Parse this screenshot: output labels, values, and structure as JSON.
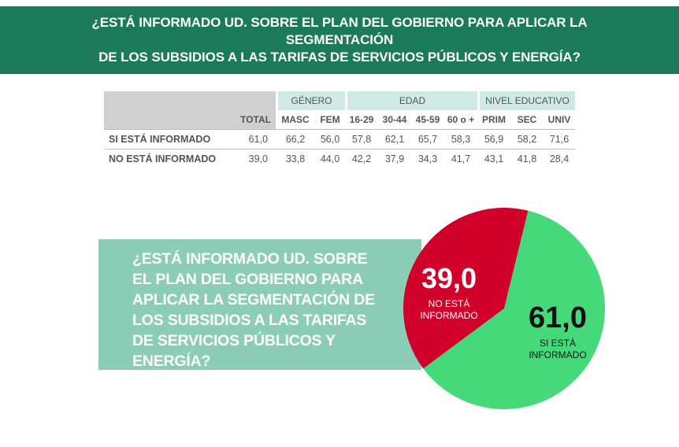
{
  "banner": {
    "title_line1": "¿ESTÁ INFORMADO UD. SOBRE EL PLAN DEL GOBIERNO PARA APLICAR LA SEGMENTACIÓN",
    "title_line2": "DE LOS SUBSIDIOS A LAS TARIFAS DE SERVICIOS PÚBLICOS Y ENERGÍA?"
  },
  "table": {
    "groups": {
      "genero": "GÉNERO",
      "edad": "EDAD",
      "nivel": "NIVEL EDUCATIVO"
    },
    "columns": [
      "TOTAL",
      "MASC",
      "FEM",
      "16-29",
      "30-44",
      "45-59",
      "60 o +",
      "PRIM",
      "SEC",
      "UNIV"
    ],
    "rows": [
      {
        "label": "SI ESTÁ INFORMADO",
        "values": [
          "61,0",
          "66,2",
          "56,0",
          "57,8",
          "62,1",
          "65,7",
          "58,3",
          "56,9",
          "58,2",
          "71,6"
        ]
      },
      {
        "label": "NO ESTÁ INFORMADO",
        "values": [
          "39,0",
          "33,8",
          "44,0",
          "42,2",
          "37,9",
          "34,3",
          "41,7",
          "43,1",
          "41,8",
          "28,4"
        ]
      }
    ]
  },
  "question": {
    "lines": [
      "¿ESTÁ INFORMADO UD. SOBRE",
      "EL PLAN DEL GOBIERNO PARA",
      "APLICAR LA SEGMENTACIÓN DE",
      "LOS SUBSIDIOS A LAS TARIFAS",
      "DE SERVICIOS PÚBLICOS Y",
      "ENERGÍA?"
    ]
  },
  "colors": {
    "banner": "#1b7a5a",
    "si": "#46d97a",
    "no": "#d0002a",
    "question_box": "#8ccdb7"
  },
  "chart_data": {
    "type": "pie",
    "slices": [
      {
        "value": 61.0,
        "display": "61,0",
        "label_line1": "SI ESTÁ",
        "label_line2": "INFORMADO",
        "color": "#46d97a"
      },
      {
        "value": 39.0,
        "display": "39,0",
        "label_line1": "NO ESTÁ",
        "label_line2": "INFORMADO",
        "color": "#d0002a"
      }
    ]
  }
}
